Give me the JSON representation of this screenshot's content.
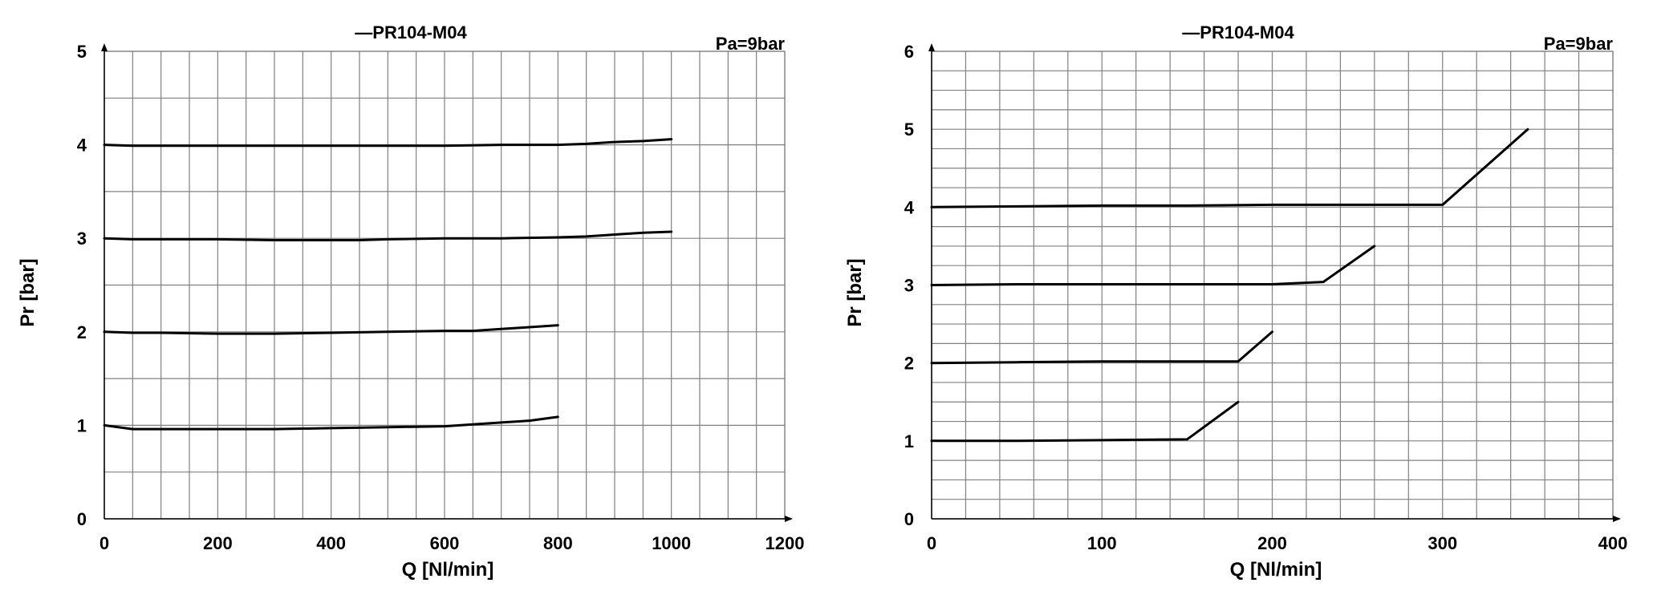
{
  "chart_data": [
    {
      "type": "line",
      "title": "—PR104-M04",
      "annotation": "Pa=9bar",
      "xlabel": "Q [Nl/min]",
      "ylabel": "Pr [bar]",
      "xlim": [
        0,
        1200
      ],
      "ylim": [
        0,
        5
      ],
      "x_ticks": [
        0,
        200,
        400,
        600,
        800,
        1000,
        1200
      ],
      "y_ticks": [
        0,
        1,
        2,
        3,
        4,
        5
      ],
      "x_minor_step": 50,
      "y_minor_step": 0.5,
      "grid": true,
      "series": [
        {
          "x": [
            0,
            50,
            100,
            200,
            300,
            400,
            500,
            600,
            700,
            800,
            850,
            900,
            950,
            1000
          ],
          "y": [
            4.0,
            3.99,
            3.99,
            3.99,
            3.99,
            3.99,
            3.99,
            3.99,
            4.0,
            4.0,
            4.01,
            4.03,
            4.04,
            4.06
          ]
        },
        {
          "x": [
            0,
            50,
            100,
            200,
            300,
            350,
            450,
            500,
            600,
            700,
            800,
            850,
            900,
            950,
            1000
          ],
          "y": [
            3.0,
            2.99,
            2.99,
            2.99,
            2.98,
            2.98,
            2.98,
            2.99,
            3.0,
            3.0,
            3.01,
            3.02,
            3.04,
            3.06,
            3.07
          ]
        },
        {
          "x": [
            0,
            50,
            100,
            200,
            300,
            400,
            500,
            600,
            650,
            700,
            750,
            800
          ],
          "y": [
            2.0,
            1.99,
            1.99,
            1.98,
            1.98,
            1.99,
            2.0,
            2.01,
            2.01,
            2.03,
            2.05,
            2.07
          ]
        },
        {
          "x": [
            0,
            50,
            100,
            200,
            300,
            400,
            500,
            600,
            650,
            700,
            750,
            800
          ],
          "y": [
            1.0,
            0.96,
            0.96,
            0.96,
            0.96,
            0.97,
            0.98,
            0.99,
            1.01,
            1.03,
            1.05,
            1.09
          ]
        }
      ]
    },
    {
      "type": "line",
      "title": "—PR104-M04",
      "annotation": "Pa=9bar",
      "xlabel": "Q [Nl/min]",
      "ylabel": "Pr [bar]",
      "xlim": [
        0,
        400
      ],
      "ylim": [
        0,
        6
      ],
      "x_ticks": [
        0,
        100,
        200,
        300,
        400
      ],
      "y_ticks": [
        0,
        1,
        2,
        3,
        4,
        5,
        6
      ],
      "x_minor_step": 20,
      "y_minor_step": 0.25,
      "grid": true,
      "series": [
        {
          "x": [
            0,
            50,
            100,
            150,
            200,
            250,
            300,
            350
          ],
          "y": [
            4.0,
            4.01,
            4.02,
            4.02,
            4.03,
            4.03,
            4.03,
            5.0
          ]
        },
        {
          "x": [
            0,
            50,
            100,
            150,
            200,
            230,
            260
          ],
          "y": [
            3.0,
            3.01,
            3.01,
            3.01,
            3.01,
            3.04,
            3.5
          ]
        },
        {
          "x": [
            0,
            50,
            100,
            150,
            180,
            200
          ],
          "y": [
            2.0,
            2.01,
            2.02,
            2.02,
            2.02,
            2.4
          ]
        },
        {
          "x": [
            0,
            50,
            100,
            150,
            180
          ],
          "y": [
            1.0,
            1.0,
            1.01,
            1.02,
            1.5
          ]
        }
      ]
    }
  ]
}
